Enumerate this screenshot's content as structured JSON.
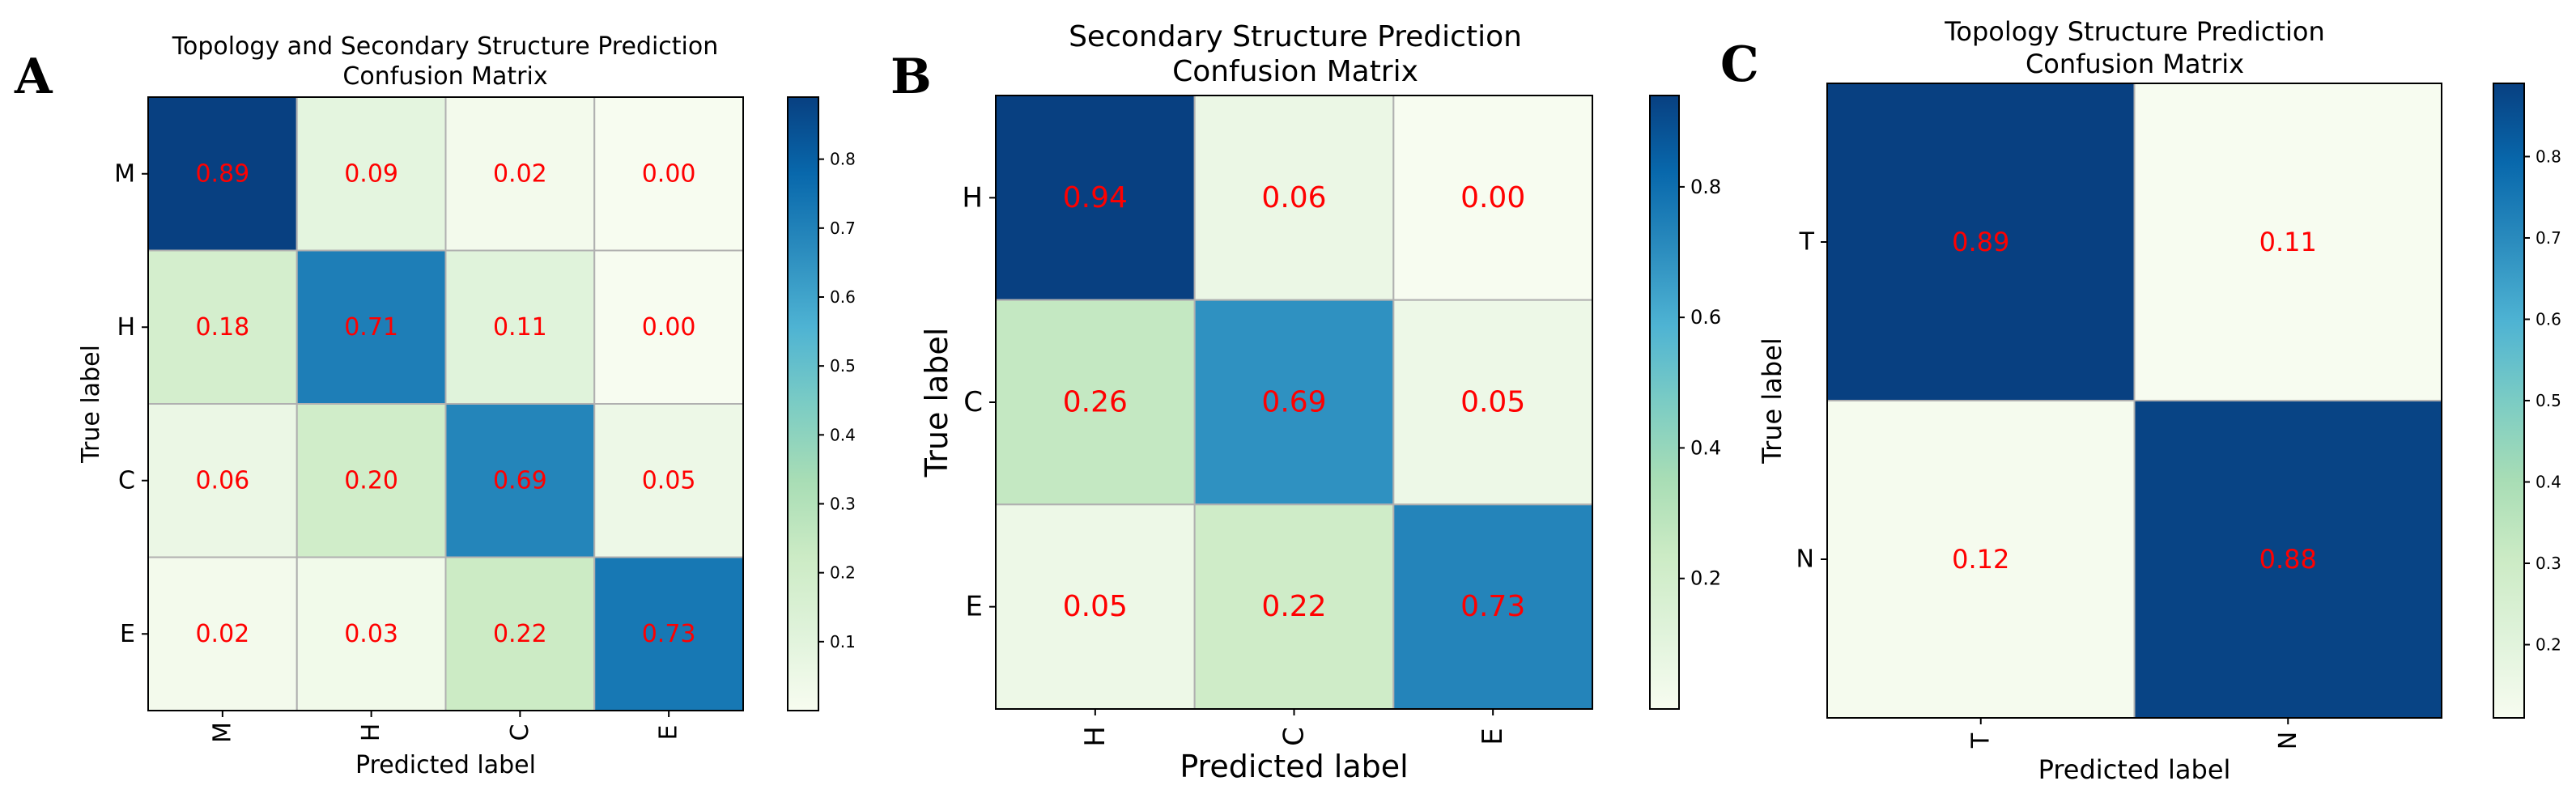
{
  "figure": {
    "colors": {
      "cell_text": "#ff0000",
      "grid_line": "#b0b0b0",
      "axis": "#000000",
      "colormap": [
        "#f7fcf0",
        "#e0f3db",
        "#ccebc5",
        "#a8ddb5",
        "#7bccc4",
        "#4eb3d3",
        "#2b8cbe",
        "#0868ac",
        "#084081"
      ]
    }
  },
  "chart_data": [
    {
      "panel": "A",
      "type": "heatmap",
      "title": [
        "Topology and Secondary Structure Prediction",
        "Confusion Matrix"
      ],
      "xlabel": "Predicted label",
      "ylabel": "True label",
      "x_categories": [
        "M",
        "H",
        "C",
        "E"
      ],
      "y_categories": [
        "M",
        "H",
        "C",
        "E"
      ],
      "values": [
        [
          0.89,
          0.09,
          0.02,
          0.0
        ],
        [
          0.18,
          0.71,
          0.11,
          0.0
        ],
        [
          0.06,
          0.2,
          0.69,
          0.05
        ],
        [
          0.02,
          0.03,
          0.22,
          0.73
        ]
      ],
      "value_labels": [
        [
          "0.89",
          "0.09",
          "0.02",
          "0.00"
        ],
        [
          "0.18",
          "0.71",
          "0.11",
          "0.00"
        ],
        [
          "0.06",
          "0.20",
          "0.69",
          "0.05"
        ],
        [
          "0.02",
          "0.03",
          "0.22",
          "0.73"
        ]
      ],
      "colorbar": {
        "min": 0.0,
        "max": 0.89,
        "ticks": [
          0.1,
          0.2,
          0.3,
          0.4,
          0.5,
          0.6,
          0.7,
          0.8
        ],
        "tick_labels": [
          "0.1",
          "0.2",
          "0.3",
          "0.4",
          "0.5",
          "0.6",
          "0.7",
          "0.8"
        ]
      }
    },
    {
      "panel": "B",
      "type": "heatmap",
      "title": [
        "Secondary Structure Prediction",
        "Confusion Matrix"
      ],
      "xlabel": "Predicted label",
      "ylabel": "True label",
      "x_categories": [
        "H",
        "C",
        "E"
      ],
      "y_categories": [
        "H",
        "C",
        "E"
      ],
      "values": [
        [
          0.94,
          0.06,
          0.0
        ],
        [
          0.26,
          0.69,
          0.05
        ],
        [
          0.05,
          0.22,
          0.73
        ]
      ],
      "value_labels": [
        [
          "0.94",
          "0.06",
          "0.00"
        ],
        [
          "0.26",
          "0.69",
          "0.05"
        ],
        [
          "0.05",
          "0.22",
          "0.73"
        ]
      ],
      "colorbar": {
        "min": 0.0,
        "max": 0.94,
        "ticks": [
          0.2,
          0.4,
          0.6,
          0.8
        ],
        "tick_labels": [
          "0.2",
          "0.4",
          "0.6",
          "0.8"
        ]
      }
    },
    {
      "panel": "C",
      "type": "heatmap",
      "title": [
        "Topology Structure Prediction",
        "Confusion Matrix"
      ],
      "xlabel": "Predicted label",
      "ylabel": "True label",
      "x_categories": [
        "T",
        "N"
      ],
      "y_categories": [
        "T",
        "N"
      ],
      "values": [
        [
          0.89,
          0.11
        ],
        [
          0.12,
          0.88
        ]
      ],
      "value_labels": [
        [
          "0.89",
          "0.11"
        ],
        [
          "0.12",
          "0.88"
        ]
      ],
      "colorbar": {
        "min": 0.11,
        "max": 0.89,
        "ticks": [
          0.2,
          0.3,
          0.4,
          0.5,
          0.6,
          0.7,
          0.8
        ],
        "tick_labels": [
          "0.2",
          "0.3",
          "0.4",
          "0.5",
          "0.6",
          "0.7",
          "0.8"
        ]
      }
    }
  ]
}
